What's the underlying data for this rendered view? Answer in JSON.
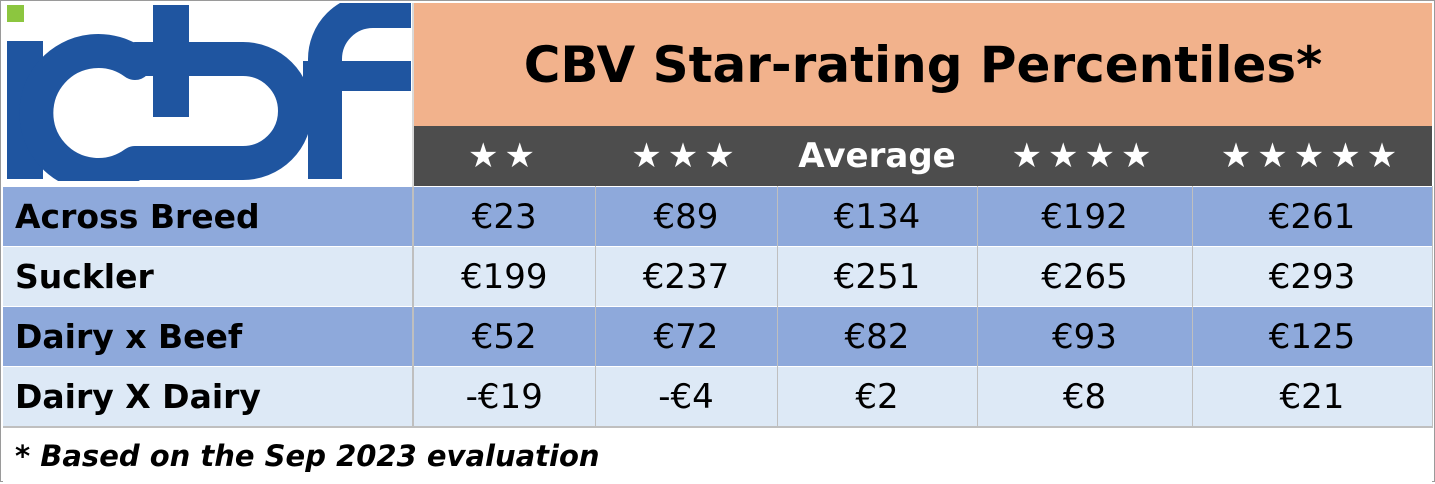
{
  "logo": {
    "brand_text": "icbf",
    "colors": {
      "blue": "#1f55a0",
      "green": "#8cc63f"
    }
  },
  "header": {
    "title": "CBV Star-rating Percentiles*",
    "columns": [
      "★★",
      "★★★",
      "Average",
      "★★★★",
      "★★★★★"
    ]
  },
  "rows": [
    {
      "label": "Across Breed",
      "values": [
        "€23",
        "€89",
        "€134",
        "€192",
        "€261"
      ]
    },
    {
      "label": "Suckler",
      "values": [
        "€199",
        "€237",
        "€251",
        "€265",
        "€293"
      ]
    },
    {
      "label": "Dairy x Beef",
      "values": [
        "€52",
        "€72",
        "€82",
        "€93",
        "€125"
      ]
    },
    {
      "label": "Dairy X Dairy",
      "values": [
        "-€19",
        "-€4",
        "€2",
        "€8",
        "€21"
      ]
    }
  ],
  "footnote": "* Based on the Sep 2023 evaluation",
  "colors": {
    "title_bg": "#f2b28c",
    "header_bg": "#4d4d4d",
    "row_dark": "#8ea9db",
    "row_light": "#dde9f6"
  }
}
